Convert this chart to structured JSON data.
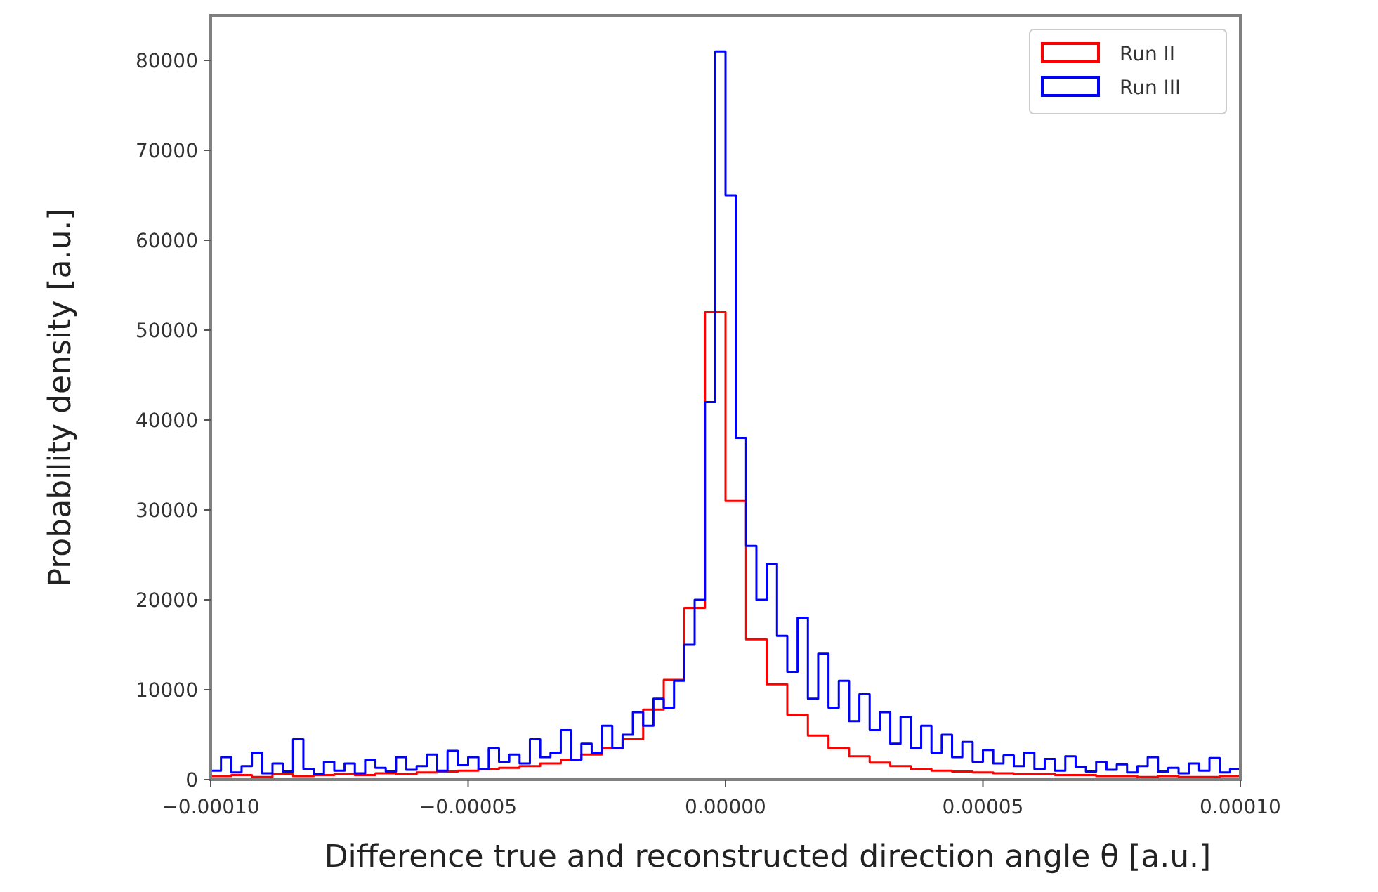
{
  "chart_data": {
    "type": "histogram",
    "xlabel": "Difference true and reconstructed direction angle θ [a.u.]",
    "ylabel": "Probability density [a.u.]",
    "xlim": [
      -0.0001,
      0.0001
    ],
    "ylim": [
      0,
      85000
    ],
    "xticks": [
      {
        "value": -0.0001,
        "label": "−0.00010"
      },
      {
        "value": -5e-05,
        "label": "−0.00005"
      },
      {
        "value": 0,
        "label": "0.00000"
      },
      {
        "value": 5e-05,
        "label": "0.00005"
      },
      {
        "value": 0.0001,
        "label": "0.00010"
      }
    ],
    "yticks": [
      0,
      10000,
      20000,
      30000,
      40000,
      50000,
      60000,
      70000,
      80000
    ],
    "legend": "top right",
    "grid": false,
    "bins": [
      -0.0001,
      -9.8e-05,
      -9.6e-05,
      -9.4e-05,
      -9.2e-05,
      -9e-05,
      -8.8e-05,
      -8.6e-05,
      -8.4e-05,
      -8.2e-05,
      -8e-05,
      -7.8e-05,
      -7.6e-05,
      -7.4e-05,
      -7.2e-05,
      -7e-05,
      -6.8e-05,
      -6.6e-05,
      -6.4e-05,
      -6.2e-05,
      -6e-05,
      -5.8e-05,
      -5.6e-05,
      -5.4e-05,
      -5.2e-05,
      -5e-05,
      -4.8e-05,
      -4.6e-05,
      -4.4e-05,
      -4.2e-05,
      -4e-05,
      -3.8e-05,
      -3.6e-05,
      -3.4e-05,
      -3.2e-05,
      -3e-05,
      -2.8e-05,
      -2.6e-05,
      -2.4e-05,
      -2.2e-05,
      -2e-05,
      -1.8e-05,
      -1.6e-05,
      -1.4e-05,
      -1.2e-05,
      -1e-05,
      -8e-06,
      -6e-06,
      -4e-06,
      -2e-06,
      0,
      2e-06,
      4e-06,
      6e-06,
      8e-06,
      1e-05,
      1.2e-05,
      1.4e-05,
      1.6e-05,
      1.8e-05,
      2e-05,
      2.2e-05,
      2.4e-05,
      2.6e-05,
      2.8e-05,
      3e-05,
      3.2e-05,
      3.4e-05,
      3.6e-05,
      3.8e-05,
      4e-05,
      4.2e-05,
      4.4e-05,
      4.6e-05,
      4.8e-05,
      5e-05,
      5.2e-05,
      5.4e-05,
      5.6e-05,
      5.8e-05,
      6e-05,
      6.2e-05,
      6.4e-05,
      6.6e-05,
      6.8e-05,
      7e-05,
      7.2e-05,
      7.4e-05,
      7.6e-05,
      7.8e-05,
      8e-05,
      8.2e-05,
      8.4e-05,
      8.6e-05,
      8.8e-05,
      9e-05,
      9.2e-05,
      9.4e-05,
      9.6e-05,
      9.8e-05,
      0.0001
    ],
    "series": [
      {
        "name": "Run II",
        "color": "#ff0000",
        "values": [
          400,
          400,
          500,
          500,
          300,
          300,
          600,
          600,
          400,
          400,
          500,
          500,
          600,
          600,
          500,
          500,
          700,
          700,
          600,
          600,
          800,
          800,
          900,
          900,
          1000,
          1000,
          1200,
          1200,
          1300,
          1300,
          1500,
          1500,
          1800,
          1800,
          2200,
          2200,
          2800,
          2800,
          3500,
          3500,
          4500,
          4500,
          7800,
          7800,
          11100,
          11100,
          19100,
          19100,
          52000,
          52000,
          31000,
          31000,
          15600,
          15600,
          10600,
          10600,
          7200,
          7200,
          4900,
          4900,
          3500,
          3500,
          2600,
          2600,
          1900,
          1900,
          1500,
          1500,
          1200,
          1200,
          1000,
          1000,
          900,
          900,
          800,
          800,
          700,
          700,
          600,
          600,
          600,
          600,
          500,
          500,
          500,
          500,
          400,
          400,
          400,
          400,
          300,
          300,
          400,
          400,
          300,
          300,
          300,
          300,
          400,
          400
        ]
      },
      {
        "name": "Run III",
        "color": "#0000ff",
        "values": [
          1000,
          2500,
          800,
          1500,
          3000,
          700,
          1800,
          900,
          4500,
          1200,
          600,
          2000,
          1000,
          1800,
          700,
          2200,
          1300,
          900,
          2500,
          1100,
          1500,
          2800,
          1000,
          3200,
          1600,
          2500,
          1200,
          3500,
          2000,
          2800,
          1800,
          4500,
          2500,
          3000,
          5500,
          2200,
          4000,
          3000,
          6000,
          3500,
          5000,
          7500,
          6000,
          9000,
          8000,
          11000,
          15000,
          20000,
          42000,
          81000,
          65000,
          38000,
          26000,
          20000,
          24000,
          16000,
          12000,
          18000,
          9000,
          14000,
          8000,
          11000,
          6500,
          9500,
          5500,
          7500,
          4000,
          7000,
          3500,
          6000,
          3000,
          5000,
          2500,
          4200,
          2000,
          3300,
          1800,
          2700,
          1500,
          3000,
          1200,
          2300,
          1000,
          2600,
          1400,
          900,
          2000,
          1100,
          1700,
          800,
          1500,
          2500,
          900,
          1300,
          700,
          1800,
          1000,
          2400,
          800,
          1200
        ]
      }
    ]
  }
}
